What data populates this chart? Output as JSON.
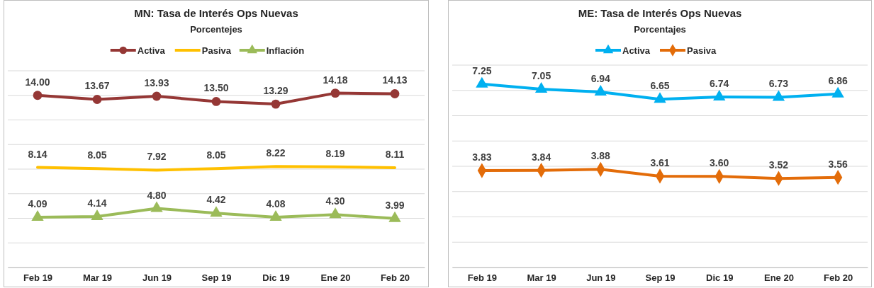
{
  "chart_data": [
    {
      "type": "line",
      "title": "MN: Tasa de Interés Ops Nuevas",
      "subtitle": "Porcentejes",
      "categories": [
        "Feb 19",
        "Mar 19",
        "Jun 19",
        "Sep 19",
        "Dic 19",
        "Ene 20",
        "Feb 20"
      ],
      "series": [
        {
          "name": "Activa",
          "color": "#953735",
          "marker": "circle",
          "values": [
            14.0,
            13.67,
            13.93,
            13.5,
            13.29,
            14.18,
            14.13
          ],
          "value_labels": [
            "14.00",
            "13.67",
            "13.93",
            "13.50",
            "13.29",
            "14.18",
            "14.13"
          ]
        },
        {
          "name": "Pasiva",
          "color": "#ffc000",
          "marker": "none",
          "values": [
            8.14,
            8.05,
            7.92,
            8.05,
            8.22,
            8.19,
            8.11
          ],
          "value_labels": [
            "8.14",
            "8.05",
            "7.92",
            "8.05",
            "8.22",
            "8.19",
            "8.11"
          ]
        },
        {
          "name": "Inflación",
          "color": "#9bbb59",
          "marker": "triangle",
          "values": [
            4.09,
            4.14,
            4.8,
            4.42,
            4.08,
            4.3,
            3.99
          ],
          "value_labels": [
            "4.09",
            "4.14",
            "4.80",
            "4.42",
            "4.08",
            "4.30",
            "3.99"
          ]
        }
      ],
      "ylim": [
        0,
        16
      ],
      "yticks": [
        {
          "value": 0,
          "label": null
        },
        {
          "value": 2,
          "label": null
        },
        {
          "value": 4,
          "label": null
        },
        {
          "value": 6,
          "label": null
        },
        {
          "value": 8,
          "label": null
        },
        {
          "value": 10,
          "label": null
        },
        {
          "value": 12,
          "label": null
        },
        {
          "value": 14,
          "label": null
        },
        {
          "value": 16,
          "label": null
        }
      ],
      "tick_labels": "x",
      "grid": "y",
      "legend": "top"
    },
    {
      "type": "line",
      "title": "ME: Tasa de Interés Ops Nuevas",
      "subtitle": "Porcentajes",
      "categories": [
        "Feb 19",
        "Mar 19",
        "Jun 19",
        "Sep 19",
        "Dic 19",
        "Ene 20",
        "Feb 20"
      ],
      "series": [
        {
          "name": "Activa",
          "color": "#00b0f0",
          "marker": "triangle",
          "values": [
            7.25,
            7.05,
            6.94,
            6.65,
            6.74,
            6.73,
            6.86
          ],
          "value_labels": [
            "7.25",
            "7.05",
            "6.94",
            "6.65",
            "6.74",
            "6.73",
            "6.86"
          ]
        },
        {
          "name": "Pasiva",
          "color": "#e36c09",
          "marker": "diamond",
          "values": [
            3.83,
            3.84,
            3.88,
            3.61,
            3.6,
            3.52,
            3.56
          ],
          "value_labels": [
            "3.83",
            "3.84",
            "3.88",
            "3.61",
            "3.60",
            "3.52",
            "3.56"
          ]
        }
      ],
      "ylim": [
        0,
        8
      ],
      "yticks": [
        {
          "value": 0,
          "label": null
        },
        {
          "value": 1,
          "label": null
        },
        {
          "value": 2,
          "label": null
        },
        {
          "value": 3,
          "label": null
        },
        {
          "value": 4,
          "label": null
        },
        {
          "value": 5,
          "label": null
        },
        {
          "value": 6,
          "label": null
        },
        {
          "value": 7,
          "label": null
        },
        {
          "value": 8,
          "label": null
        }
      ],
      "tick_labels": "x",
      "grid": "y",
      "legend": "top"
    }
  ]
}
